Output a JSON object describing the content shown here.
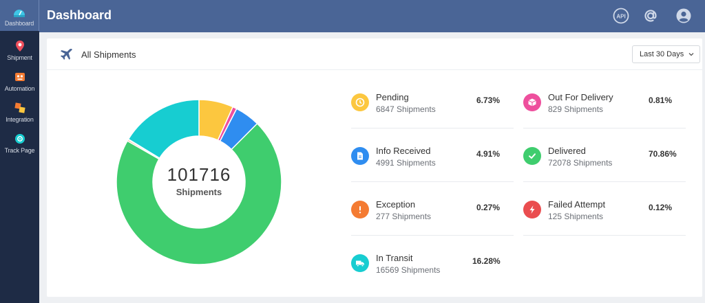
{
  "sidebar": {
    "items": [
      {
        "label": "Dashboard",
        "icon": "dashboard-icon",
        "active": true
      },
      {
        "label": "Shipment",
        "icon": "location-pin-icon"
      },
      {
        "label": "Automation",
        "icon": "robot-icon"
      },
      {
        "label": "Integration",
        "icon": "integration-icon"
      },
      {
        "label": "Track Page",
        "icon": "track-page-icon"
      }
    ]
  },
  "header": {
    "title": "Dashboard",
    "api_label": "API"
  },
  "card": {
    "title": "All Shipments",
    "date_range": "Last 30 Days"
  },
  "donut": {
    "total": "101716",
    "total_label": "Shipments"
  },
  "stats": [
    {
      "name": "Pending",
      "count": "6847 Shipments",
      "percent": "6.73%",
      "value": 6.73,
      "color": "#fcc73f",
      "icon": "clock-icon"
    },
    {
      "name": "Out For Delivery",
      "count": "829 Shipments",
      "percent": "0.81%",
      "value": 0.81,
      "color": "#ee4f9d",
      "icon": "package-icon"
    },
    {
      "name": "Info Received",
      "count": "4991 Shipments",
      "percent": "4.91%",
      "value": 4.91,
      "color": "#2f8df0",
      "icon": "document-icon"
    },
    {
      "name": "Delivered",
      "count": "72078 Shipments",
      "percent": "70.86%",
      "value": 70.86,
      "color": "#3fcd6e",
      "icon": "check-icon"
    },
    {
      "name": "Exception",
      "count": "277 Shipments",
      "percent": "0.27%",
      "value": 0.27,
      "color": "#f47b32",
      "icon": "exclamation-icon"
    },
    {
      "name": "Failed Attempt",
      "count": "125 Shipments",
      "percent": "0.12%",
      "value": 0.12,
      "color": "#ea4d4f",
      "icon": "lightning-icon"
    },
    {
      "name": "In Transit",
      "count": "16569 Shipments",
      "percent": "16.28%",
      "value": 16.28,
      "color": "#17cdd1",
      "icon": "truck-icon"
    }
  ],
  "chart_data": {
    "type": "pie",
    "style": "donut",
    "categories": [
      "Pending",
      "Out For Delivery",
      "Info Received",
      "Delivered",
      "Exception",
      "Failed Attempt",
      "In Transit"
    ],
    "values": [
      6.73,
      0.81,
      4.91,
      70.86,
      0.27,
      0.12,
      16.28
    ],
    "colors": [
      "#fcc73f",
      "#ee4f9d",
      "#2f8df0",
      "#3fcd6e",
      "#f47b32",
      "#ea4d4f",
      "#17cdd1"
    ]
  }
}
